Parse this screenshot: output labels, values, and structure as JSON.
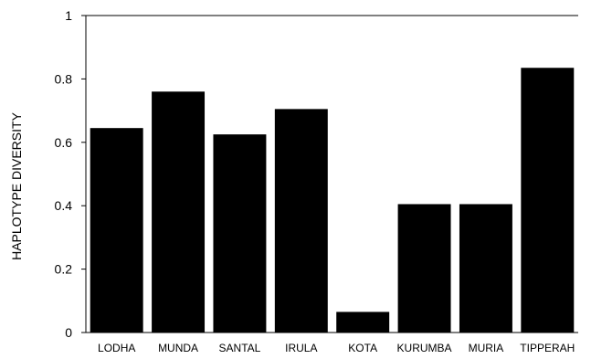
{
  "chart_data": {
    "type": "bar",
    "title": "",
    "xlabel": "",
    "ylabel": "HAPLOTYPE DIVERSITY",
    "ylim": [
      0,
      1
    ],
    "yticks": [
      0,
      0.2,
      0.4,
      0.6,
      0.8,
      1
    ],
    "ytick_labels": [
      "0",
      "0.2",
      "0.4",
      "0.6",
      "0.8",
      "1"
    ],
    "categories": [
      "LODHA",
      "MUNDA",
      "SANTAL",
      "IRULA",
      "KOTA",
      "KURUMBA",
      "MURIA",
      "TIPPERAH"
    ],
    "values": [
      0.645,
      0.76,
      0.625,
      0.705,
      0.065,
      0.405,
      0.405,
      0.835
    ],
    "grid": false,
    "legend": "none",
    "bar_color": "#000000"
  }
}
